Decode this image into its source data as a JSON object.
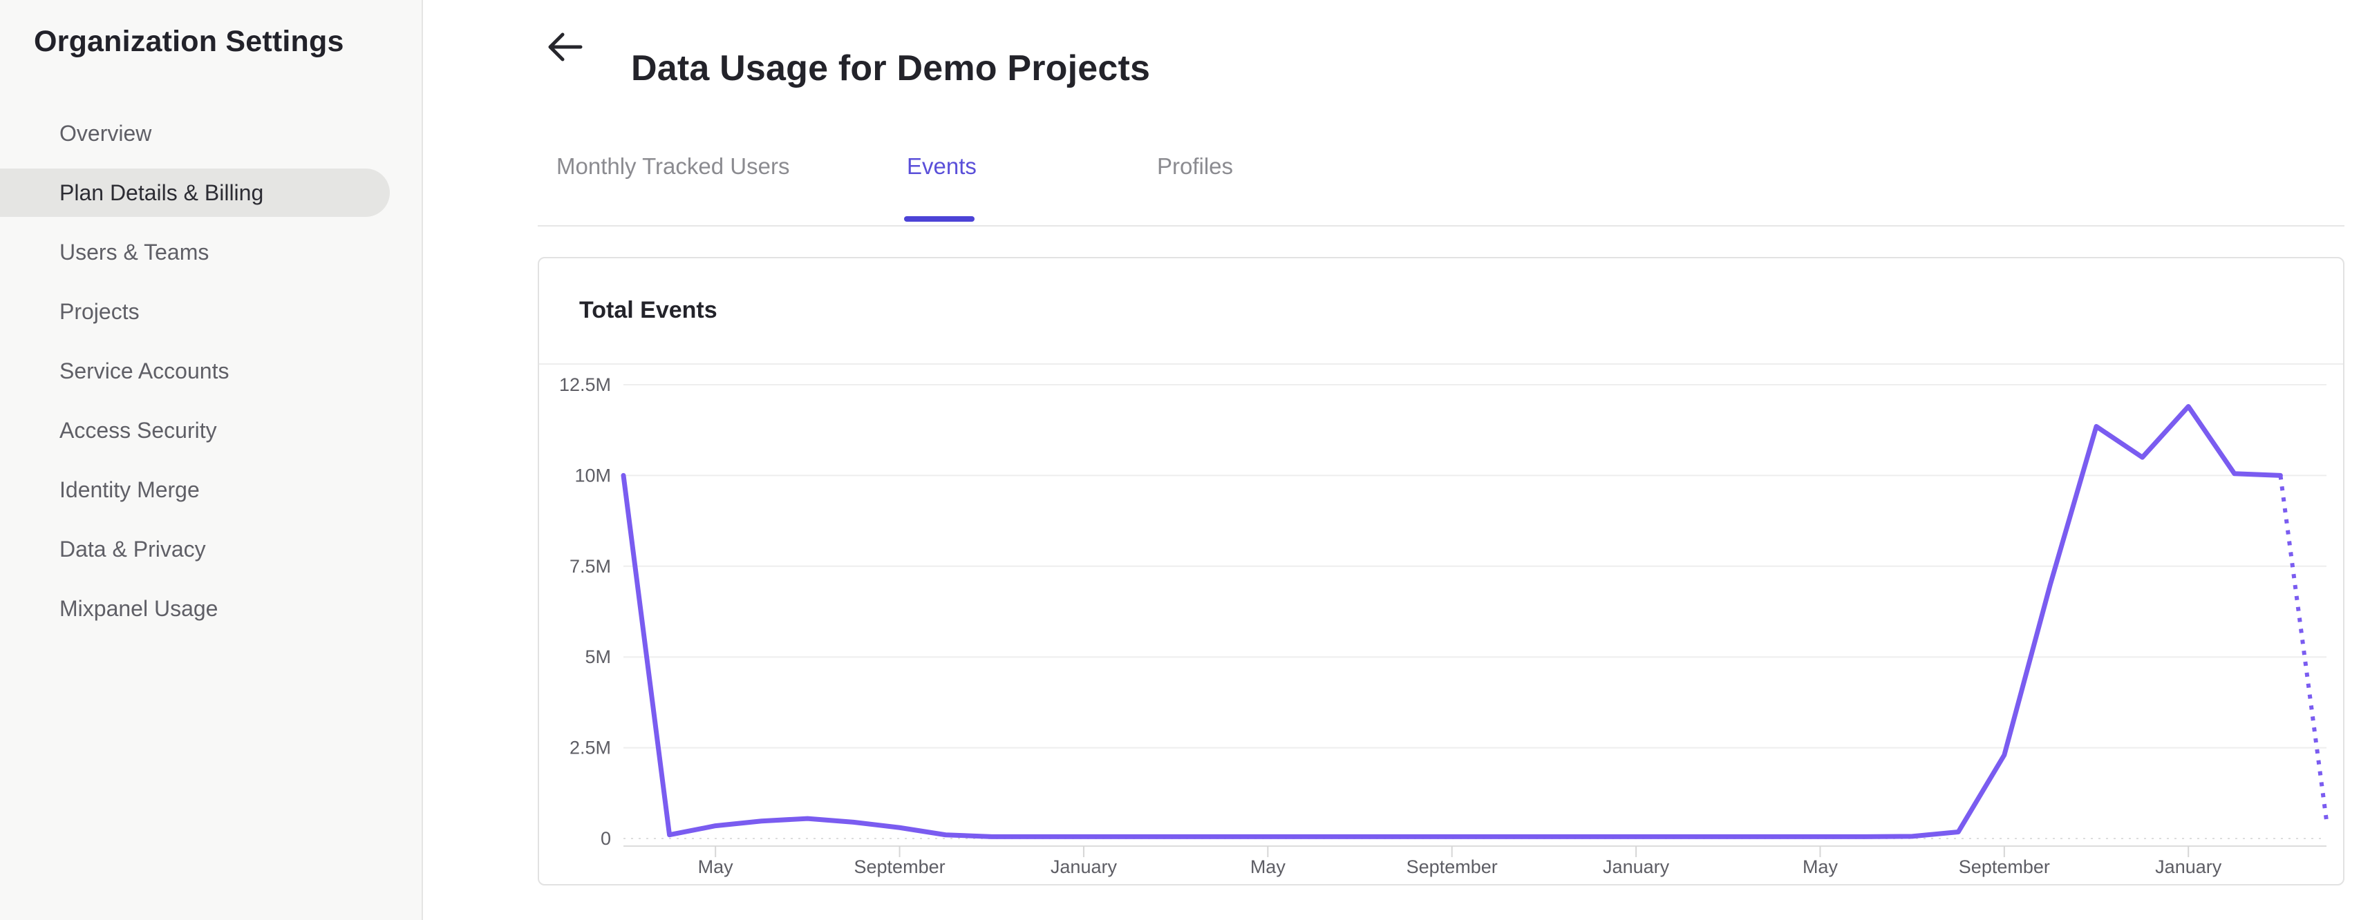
{
  "sidebar": {
    "title": "Organization Settings",
    "items": [
      {
        "label": "Overview",
        "active": false
      },
      {
        "label": "Plan Details & Billing",
        "active": true
      },
      {
        "label": "Users & Teams",
        "active": false
      },
      {
        "label": "Projects",
        "active": false
      },
      {
        "label": "Service Accounts",
        "active": false
      },
      {
        "label": "Access Security",
        "active": false
      },
      {
        "label": "Identity Merge",
        "active": false
      },
      {
        "label": "Data & Privacy",
        "active": false
      },
      {
        "label": "Mixpanel Usage",
        "active": false
      }
    ]
  },
  "header": {
    "back_glyph": "back-arrow",
    "title": "Data Usage for Demo Projects"
  },
  "tabs": [
    {
      "label": "Monthly Tracked Users",
      "active": false
    },
    {
      "label": "Events",
      "active": true
    },
    {
      "label": "Profiles",
      "active": false
    }
  ],
  "card": {
    "title": "Total Events"
  },
  "colors": {
    "accent_purple": "#5a4fd9",
    "tab_underline": "#4c43d6",
    "chart_line": "#7a5cf0",
    "sidebar_active_bg": "#e5e5e3"
  },
  "chart_data": {
    "type": "line",
    "title": "Total Events",
    "grid": "horizontal",
    "legend": "none",
    "y_axis": {
      "max_millions": 12.5,
      "ticks": [
        {
          "label": "0",
          "value_millions": 0
        },
        {
          "label": "2.5M",
          "value_millions": 2.5
        },
        {
          "label": "5M",
          "value_millions": 5
        },
        {
          "label": "7.5M",
          "value_millions": 7.5
        },
        {
          "label": "10M",
          "value_millions": 10
        },
        {
          "label": "12.5M",
          "value_millions": 12.5
        }
      ]
    },
    "x_axis": {
      "tick_labels": [
        "May",
        "September",
        "January",
        "May",
        "September",
        "January",
        "May",
        "September",
        "January"
      ],
      "tick_point_indices": [
        2,
        6,
        10,
        14,
        18,
        22,
        26,
        30,
        34
      ]
    },
    "series": [
      {
        "name": "Total Events",
        "color": "#7a5cf0",
        "values_millions": [
          10,
          0.1,
          0.35,
          0.48,
          0.55,
          0.45,
          0.3,
          0.1,
          0.05,
          0.05,
          0.05,
          0.05,
          0.05,
          0.05,
          0.05,
          0.05,
          0.05,
          0.05,
          0.05,
          0.05,
          0.05,
          0.05,
          0.05,
          0.05,
          0.05,
          0.05,
          0.05,
          0.05,
          0.06,
          0.18,
          2.3,
          7,
          11.35,
          10.5,
          11.9,
          10.05,
          10,
          0.5
        ],
        "projected_dotted_from_index": 36
      }
    ]
  }
}
